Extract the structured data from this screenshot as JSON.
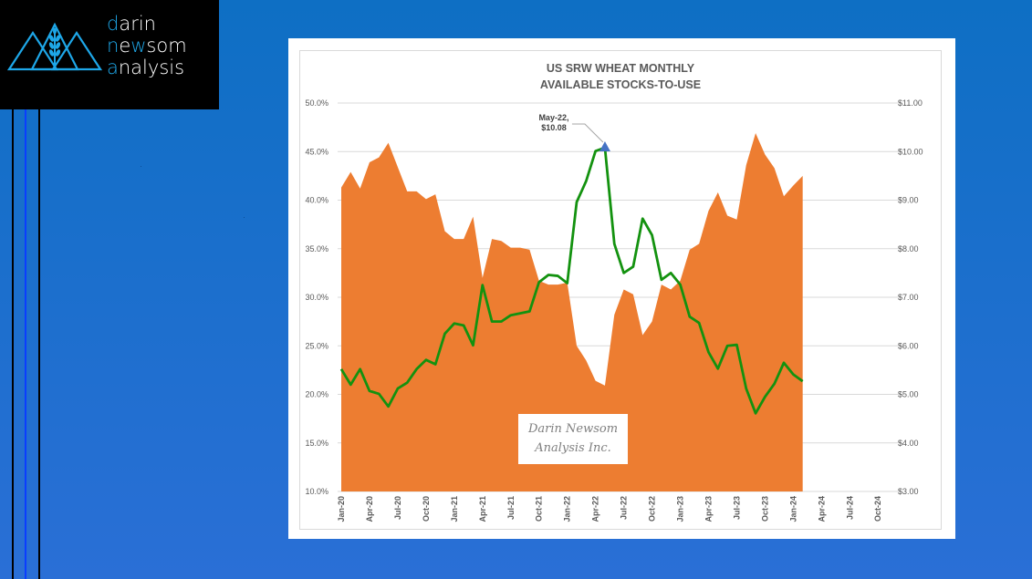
{
  "logo": {
    "line1_accent": "d",
    "line1_rest": "arin",
    "line2_accent1": "n",
    "line2_mid": "e",
    "line2_accent2": "w",
    "line2_rest": "som",
    "line3_accent": "a",
    "line3_rest": "nalysis",
    "accent_color": "#1ea7e8"
  },
  "watermark": {
    "line1": "Darin Newsom",
    "line2": "Analysis Inc."
  },
  "chart_data": {
    "type": "area",
    "title": "US SRW WHEAT MONTHLY",
    "subtitle": "AVAILABLE STOCKS-TO-USE",
    "xlabel": "",
    "ylabel_left": "",
    "ylabel_right": "",
    "x_ticks": [
      "Jan-20",
      "Apr-20",
      "Jul-20",
      "Oct-20",
      "Jan-21",
      "Apr-21",
      "Jul-21",
      "Oct-21",
      "Jan-22",
      "Apr-22",
      "Jul-22",
      "Oct-22",
      "Jan-23",
      "Apr-23",
      "Jul-23",
      "Oct-23",
      "Jan-24",
      "Apr-24",
      "Jul-24",
      "Oct-24"
    ],
    "x_range": [
      "Jan-20",
      "Oct-24"
    ],
    "y_left": {
      "ticks": [
        "10.0%",
        "15.0%",
        "20.0%",
        "25.0%",
        "30.0%",
        "35.0%",
        "40.0%",
        "45.0%",
        "50.0%"
      ],
      "range": [
        10,
        50
      ]
    },
    "y_right": {
      "ticks": [
        "$3.00",
        "$4.00",
        "$5.00",
        "$6.00",
        "$7.00",
        "$8.00",
        "$9.00",
        "$10.00",
        "$11.00"
      ],
      "range": [
        3,
        11
      ]
    },
    "grid": true,
    "legend": "none",
    "months": [
      "Jan-20",
      "Feb-20",
      "Mar-20",
      "Apr-20",
      "May-20",
      "Jun-20",
      "Jul-20",
      "Aug-20",
      "Sep-20",
      "Oct-20",
      "Nov-20",
      "Dec-20",
      "Jan-21",
      "Feb-21",
      "Mar-21",
      "Apr-21",
      "May-21",
      "Jun-21",
      "Jul-21",
      "Aug-21",
      "Sep-21",
      "Oct-21",
      "Nov-21",
      "Dec-21",
      "Jan-22",
      "Feb-22",
      "Mar-22",
      "Apr-22",
      "May-22",
      "Jun-22",
      "Jul-22",
      "Aug-22",
      "Sep-22",
      "Oct-22",
      "Nov-22",
      "Dec-22",
      "Jan-23",
      "Feb-23",
      "Mar-23",
      "Apr-23",
      "May-23",
      "Jun-23",
      "Jul-23",
      "Aug-23",
      "Sep-23",
      "Oct-23",
      "Nov-23",
      "Dec-23",
      "Jan-24",
      "Feb-24"
    ],
    "series": [
      {
        "name": "Available Stocks-to-Use (%)",
        "axis": "left",
        "type": "area",
        "color": "#ed7d31",
        "values": [
          41.3,
          42.9,
          41.2,
          43.9,
          44.4,
          45.9,
          43.4,
          40.9,
          40.9,
          40.1,
          40.6,
          36.8,
          36.0,
          36.0,
          38.3,
          32.0,
          36.0,
          35.8,
          35.1,
          35.1,
          34.9,
          31.7,
          31.3,
          31.3,
          31.5,
          25.0,
          23.5,
          21.4,
          20.9,
          28.2,
          30.8,
          30.3,
          26.1,
          27.5,
          31.3,
          30.8,
          31.7,
          34.9,
          35.5,
          38.9,
          40.8,
          38.4,
          38.0,
          43.6,
          46.9,
          44.7,
          43.3,
          40.4,
          41.5,
          42.5
        ]
      },
      {
        "name": "SRW Wheat Price ($/bu)",
        "axis": "right",
        "type": "line",
        "color": "#13920f",
        "values": [
          5.52,
          5.2,
          5.52,
          5.07,
          5.01,
          4.75,
          5.12,
          5.24,
          5.52,
          5.71,
          5.62,
          6.25,
          6.46,
          6.42,
          6.01,
          7.25,
          6.5,
          6.5,
          6.63,
          6.67,
          6.71,
          7.31,
          7.46,
          7.44,
          7.29,
          8.96,
          9.39,
          10.01,
          10.08,
          8.1,
          7.5,
          7.63,
          8.62,
          8.28,
          7.36,
          7.5,
          7.26,
          6.6,
          6.47,
          5.87,
          5.53,
          6.0,
          6.02,
          5.12,
          4.61,
          4.95,
          5.22,
          5.65,
          5.41,
          5.27
        ]
      }
    ],
    "annotations": [
      {
        "x": "May-22",
        "series": "SRW Wheat Price ($/bu)",
        "value": 10.08,
        "line1": "May-22,",
        "line2": "$10.08",
        "marker": "triangle",
        "marker_color": "#4472c4"
      }
    ]
  }
}
